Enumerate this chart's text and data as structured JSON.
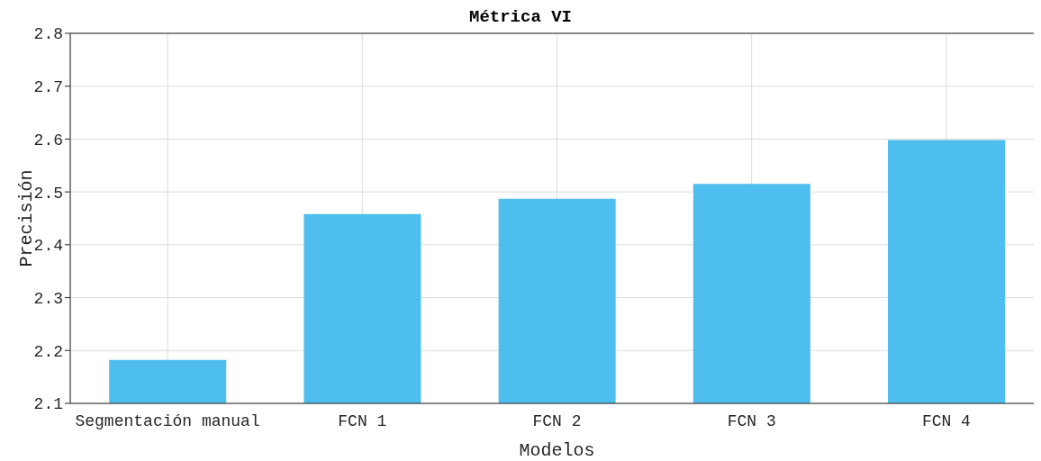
{
  "chart_data": {
    "type": "bar",
    "title": "Métrica VI",
    "xlabel": "Modelos",
    "ylabel": "Precisión",
    "categories": [
      "Segmentación manual",
      "FCN 1",
      "FCN 2",
      "FCN 3",
      "FCN 4"
    ],
    "values": [
      2.182,
      2.458,
      2.487,
      2.515,
      2.598
    ],
    "color": "#4dbeee",
    "ylim": [
      2.1,
      2.8
    ],
    "yticks": [
      2.1,
      2.2,
      2.3,
      2.4,
      2.5,
      2.6,
      2.7,
      2.8
    ],
    "grid": true
  }
}
